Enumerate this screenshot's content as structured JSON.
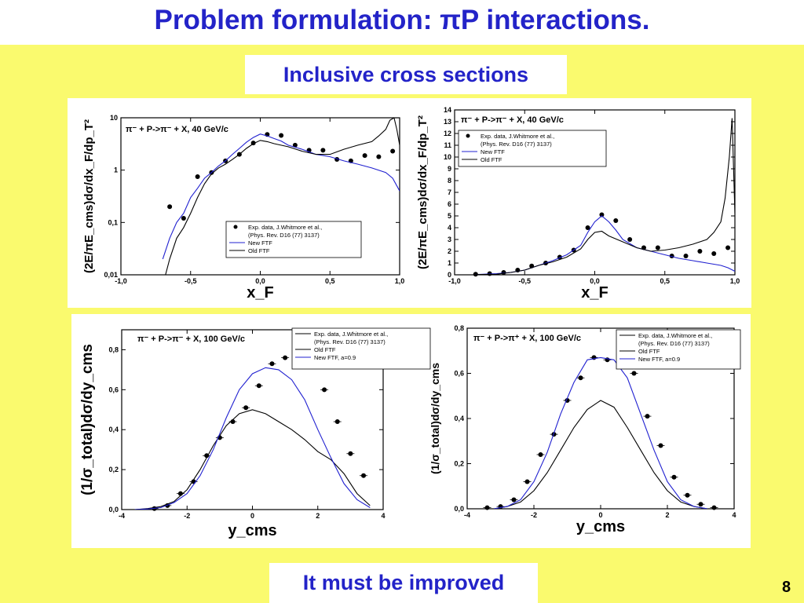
{
  "slide": {
    "title": "Problem formulation: πP interactions.",
    "subtitle": "Inclusive cross sections",
    "footer": "It must be improved",
    "page_number": "8",
    "colors": {
      "title": "#2323c8",
      "background": "#fafa6e",
      "box": "#ffffff",
      "new_ftf": "#2020d0",
      "old_ftf": "#000000",
      "data": "#000000"
    }
  },
  "legend_text": {
    "exp1": "Exp. data, J.Whitmore et al.,",
    "exp2": "(Phys. Rev. D16 (77) 3137)",
    "new_ftf": "New FTF",
    "old_ftf": "Old FTF",
    "new_ftf_a": "New FTF, a=0.9"
  },
  "chart_data": [
    {
      "type": "line",
      "title": "π⁻ + P->π⁻ + X, 40 GeV/c",
      "xlabel": "x_F",
      "ylabel": "(2E/πE_cms)dσ/dx_F/dp_T²",
      "yscale": "log",
      "xlim": [
        -1.0,
        1.0
      ],
      "ylim": [
        0.01,
        10
      ],
      "x_tick_labels": [
        "-1,0",
        "-0,5",
        "0,0",
        "0,5",
        "1,0"
      ],
      "y_tick_labels": [
        "0,01",
        "0,1",
        "1",
        "10"
      ],
      "legend_position": "bottom-right",
      "series": [
        {
          "name": "Exp. data, J.Whitmore et al., (Phys. Rev. D16 (77) 3137)",
          "kind": "points",
          "x": [
            -0.65,
            -0.55,
            -0.45,
            -0.35,
            -0.25,
            -0.15,
            -0.05,
            0.05,
            0.15,
            0.25,
            0.35,
            0.45,
            0.55,
            0.65,
            0.75,
            0.85,
            0.95
          ],
          "y": [
            0.2,
            0.12,
            0.75,
            0.9,
            1.5,
            2.0,
            3.3,
            4.8,
            4.6,
            3.0,
            2.4,
            2.4,
            1.6,
            1.5,
            1.9,
            1.8,
            2.3
          ]
        },
        {
          "name": "New FTF",
          "kind": "line",
          "x": [
            -0.7,
            -0.65,
            -0.6,
            -0.55,
            -0.5,
            -0.45,
            -0.4,
            -0.35,
            -0.3,
            -0.25,
            -0.2,
            -0.15,
            -0.1,
            -0.05,
            0.0,
            0.05,
            0.1,
            0.15,
            0.2,
            0.3,
            0.4,
            0.5,
            0.6,
            0.7,
            0.8,
            0.9,
            0.95,
            1.0
          ],
          "y": [
            0.02,
            0.05,
            0.1,
            0.15,
            0.3,
            0.45,
            0.7,
            0.9,
            1.2,
            1.5,
            2.0,
            2.6,
            3.4,
            4.2,
            4.9,
            4.5,
            4.0,
            3.6,
            3.0,
            2.5,
            2.0,
            1.8,
            1.5,
            1.3,
            1.1,
            0.9,
            0.7,
            0.4
          ]
        },
        {
          "name": "Old FTF",
          "kind": "line",
          "x": [
            -0.68,
            -0.65,
            -0.6,
            -0.55,
            -0.5,
            -0.45,
            -0.4,
            -0.35,
            -0.3,
            -0.25,
            -0.2,
            -0.15,
            -0.1,
            -0.05,
            0.0,
            0.05,
            0.1,
            0.2,
            0.3,
            0.4,
            0.5,
            0.6,
            0.7,
            0.8,
            0.85,
            0.9,
            0.93,
            0.96,
            0.98,
            1.0
          ],
          "y": [
            0.01,
            0.02,
            0.05,
            0.08,
            0.15,
            0.3,
            0.55,
            0.85,
            1.1,
            1.3,
            1.6,
            2.0,
            2.6,
            3.2,
            3.7,
            3.5,
            3.2,
            2.8,
            2.3,
            2.0,
            2.0,
            2.5,
            3.0,
            3.5,
            4.5,
            6.0,
            9.0,
            10.0,
            6.0,
            3.0
          ]
        }
      ]
    },
    {
      "type": "line",
      "title": "π⁻ + P->π⁻ + X, 40 GeV/c",
      "xlabel": "x_F",
      "ylabel": "(2E/πE_cms)dσ/dx_F/dp_T²",
      "xlim": [
        -1.0,
        1.0
      ],
      "ylim": [
        0,
        14
      ],
      "x_tick_labels": [
        "-1,0",
        "-0,5",
        "0,0",
        "0,5",
        "1,0"
      ],
      "y_tick_labels": [
        "0",
        "1",
        "2",
        "3",
        "4",
        "5",
        "6",
        "7",
        "8",
        "9",
        "10",
        "11",
        "12",
        "13",
        "14"
      ],
      "legend_position": "top-left",
      "series": [
        {
          "name": "Exp. data, J.Whitmore et al., (Phys. Rev. D16 (77) 3137)",
          "kind": "points",
          "x": [
            -0.85,
            -0.75,
            -0.65,
            -0.55,
            -0.45,
            -0.35,
            -0.25,
            -0.15,
            -0.05,
            0.05,
            0.15,
            0.25,
            0.35,
            0.45,
            0.55,
            0.65,
            0.75,
            0.85,
            0.95
          ],
          "y": [
            0.05,
            0.1,
            0.2,
            0.4,
            0.75,
            1.0,
            1.5,
            2.1,
            4.0,
            5.1,
            4.6,
            3.0,
            2.3,
            2.3,
            1.6,
            1.6,
            2.0,
            1.8,
            2.3
          ]
        },
        {
          "name": "New FTF",
          "kind": "line",
          "x": [
            -0.85,
            -0.7,
            -0.6,
            -0.5,
            -0.4,
            -0.3,
            -0.2,
            -0.1,
            -0.05,
            0.0,
            0.05,
            0.1,
            0.15,
            0.2,
            0.3,
            0.4,
            0.5,
            0.6,
            0.7,
            0.8,
            0.9,
            0.95,
            1.0
          ],
          "y": [
            0.02,
            0.1,
            0.2,
            0.4,
            0.8,
            1.2,
            1.7,
            2.5,
            3.6,
            4.5,
            5.0,
            4.5,
            3.8,
            3.0,
            2.3,
            2.0,
            1.7,
            1.4,
            1.2,
            1.0,
            0.8,
            0.6,
            0.3
          ]
        },
        {
          "name": "Old FTF",
          "kind": "line",
          "x": [
            -0.85,
            -0.7,
            -0.6,
            -0.5,
            -0.4,
            -0.3,
            -0.2,
            -0.1,
            -0.05,
            0.0,
            0.05,
            0.1,
            0.2,
            0.3,
            0.4,
            0.5,
            0.6,
            0.7,
            0.8,
            0.85,
            0.9,
            0.93,
            0.96,
            0.98,
            1.0
          ],
          "y": [
            0.02,
            0.05,
            0.2,
            0.4,
            0.8,
            1.1,
            1.5,
            2.2,
            3.0,
            3.6,
            3.7,
            3.3,
            2.8,
            2.3,
            2.0,
            2.1,
            2.3,
            2.6,
            3.0,
            3.6,
            4.5,
            6.5,
            10.0,
            13.3,
            5.2
          ]
        }
      ]
    },
    {
      "type": "line",
      "title": "π⁻ + P->π⁻ + X, 100 GeV/c",
      "xlabel": "y_cms",
      "ylabel": "(1/σ_total)dσ/dy_cms",
      "xlim": [
        -5,
        5
      ],
      "ylim": [
        0,
        0.9
      ],
      "x_tick_labels": [
        "-4",
        "-2",
        "0",
        "2",
        "4"
      ],
      "y_tick_labels": [
        "0,0",
        "0,2",
        "0,4",
        "0,6",
        "0,8"
      ],
      "legend_position": "top-right",
      "series": [
        {
          "name": "Exp. data, J.Whitmore et al., (Phys. Rev. D16 (77) 3137)",
          "kind": "points",
          "x": [
            -3.75,
            -3.25,
            -2.75,
            -2.25,
            -1.75,
            -1.25,
            -0.75,
            -0.25,
            0.25,
            0.75,
            1.25,
            1.75,
            2.25,
            2.75,
            3.25,
            3.75,
            4.25
          ],
          "y": [
            0.005,
            0.02,
            0.08,
            0.14,
            0.27,
            0.36,
            0.44,
            0.51,
            0.62,
            0.73,
            0.76,
            0.77,
            0.76,
            0.6,
            0.44,
            0.28,
            0.17
          ]
        },
        {
          "name": "Old FTF",
          "kind": "line",
          "x": [
            -4.5,
            -4,
            -3.5,
            -3,
            -2.5,
            -2,
            -1.5,
            -1,
            -0.5,
            0,
            0.5,
            1,
            1.5,
            2,
            2.5,
            3,
            3.5,
            4,
            4.5
          ],
          "y": [
            0.0,
            0.005,
            0.015,
            0.04,
            0.1,
            0.2,
            0.32,
            0.42,
            0.48,
            0.5,
            0.48,
            0.44,
            0.4,
            0.35,
            0.29,
            0.25,
            0.18,
            0.08,
            0.02
          ]
        },
        {
          "name": "New FTF, a=0.9",
          "kind": "line",
          "x": [
            -4.5,
            -4,
            -3.5,
            -3,
            -2.5,
            -2,
            -1.5,
            -1,
            -0.5,
            0,
            0.5,
            1,
            1.5,
            2,
            2.5,
            3,
            3.5,
            4,
            4.5
          ],
          "y": [
            0.0,
            0.003,
            0.01,
            0.035,
            0.08,
            0.17,
            0.3,
            0.46,
            0.6,
            0.68,
            0.71,
            0.7,
            0.65,
            0.55,
            0.4,
            0.26,
            0.13,
            0.05,
            0.01
          ]
        }
      ]
    },
    {
      "type": "line",
      "title": "π⁻ + P->π⁺ + X, 100 GeV/c",
      "xlabel": "y_cms",
      "ylabel": "(1/σ_total)dσ/dy_cms",
      "xlim": [
        -5,
        5
      ],
      "ylim": [
        0,
        0.8
      ],
      "x_tick_labels": [
        "-4",
        "-2",
        "0",
        "2",
        "4"
      ],
      "y_tick_labels": [
        "0,0",
        "0,2",
        "0,4",
        "0,6",
        "0,8"
      ],
      "legend_position": "top-right",
      "series": [
        {
          "name": "Exp. data, J.Whitmore et al., (Phys. Rev. D16 (77) 3137)",
          "kind": "points",
          "x": [
            -4.25,
            -3.75,
            -3.25,
            -2.75,
            -2.25,
            -1.75,
            -1.25,
            -0.75,
            -0.25,
            0.25,
            0.75,
            1.25,
            1.75,
            2.25,
            2.75,
            3.25,
            3.75,
            4.25
          ],
          "y": [
            0.005,
            0.01,
            0.04,
            0.12,
            0.24,
            0.33,
            0.48,
            0.58,
            0.67,
            0.66,
            0.67,
            0.6,
            0.41,
            0.28,
            0.14,
            0.06,
            0.02,
            0.005
          ]
        },
        {
          "name": "Old FTF",
          "kind": "line",
          "x": [
            -4,
            -3.5,
            -3,
            -2.5,
            -2,
            -1.5,
            -1,
            -0.5,
            0,
            0.5,
            1,
            1.5,
            2,
            2.5,
            3,
            3.5,
            4
          ],
          "y": [
            0.0,
            0.01,
            0.03,
            0.08,
            0.16,
            0.26,
            0.36,
            0.44,
            0.48,
            0.45,
            0.36,
            0.26,
            0.16,
            0.08,
            0.03,
            0.01,
            0.0
          ]
        },
        {
          "name": "New FTF, a=0.9",
          "kind": "line",
          "x": [
            -4,
            -3.5,
            -3,
            -2.5,
            -2,
            -1.5,
            -1,
            -0.5,
            0,
            0.5,
            1,
            1.5,
            2,
            2.5,
            3,
            3.5,
            4
          ],
          "y": [
            0.0,
            0.01,
            0.04,
            0.12,
            0.25,
            0.42,
            0.56,
            0.66,
            0.67,
            0.66,
            0.58,
            0.42,
            0.26,
            0.12,
            0.04,
            0.01,
            0.0
          ]
        }
      ]
    }
  ]
}
